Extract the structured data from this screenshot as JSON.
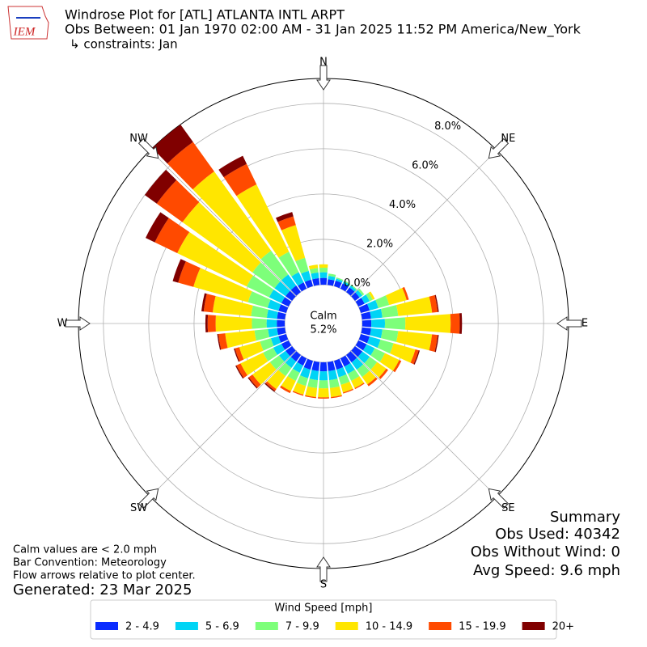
{
  "chart_data": {
    "type": "windrose",
    "title": "Windrose Plot for [ATL] ATLANTA INTL ARPT",
    "subtitle": "Obs Between: 01 Jan 1970 02:00 AM - 31 Jan 2025 11:52 PM America/New_York",
    "constraints": "↳ constraints: Jan",
    "logo_text": "IEM",
    "x": [
      0,
      10,
      20,
      30,
      40,
      50,
      60,
      70,
      80,
      90,
      100,
      110,
      120,
      130,
      140,
      150,
      160,
      170,
      180,
      190,
      200,
      210,
      220,
      230,
      240,
      250,
      260,
      270,
      280,
      290,
      300,
      310,
      320,
      330,
      340,
      350
    ],
    "xticks": [
      {
        "value": 0,
        "label": "N"
      },
      {
        "value": 45,
        "label": "NE"
      },
      {
        "value": 90,
        "label": "E"
      },
      {
        "value": 135,
        "label": "SE"
      },
      {
        "value": 180,
        "label": "S"
      },
      {
        "value": 225,
        "label": "SW"
      },
      {
        "value": 270,
        "label": "W"
      },
      {
        "value": 315,
        "label": "NW"
      }
    ],
    "ylim": [
      0,
      9.1
    ],
    "yticks": [
      {
        "value": 0,
        "label": "0.0%"
      },
      {
        "value": 2,
        "label": "2.0%"
      },
      {
        "value": 4,
        "label": "4.0%"
      },
      {
        "value": 6,
        "label": "6.0%"
      },
      {
        "value": 8,
        "label": "8.0%"
      }
    ],
    "grid": true,
    "calm": {
      "label": "Calm",
      "value": "5.2%"
    },
    "legend_title": "Wind Speed [mph]",
    "series": [
      {
        "name": "2 - 4.9",
        "color": "#0a2cff",
        "values": [
          0.3,
          0.25,
          0.25,
          0.25,
          0.25,
          0.25,
          0.3,
          0.4,
          0.4,
          0.4,
          0.4,
          0.4,
          0.4,
          0.4,
          0.4,
          0.4,
          0.4,
          0.4,
          0.4,
          0.4,
          0.4,
          0.35,
          0.35,
          0.35,
          0.35,
          0.35,
          0.35,
          0.35,
          0.35,
          0.35,
          0.35,
          0.35,
          0.35,
          0.3,
          0.3,
          0.3
        ]
      },
      {
        "name": "5 - 6.9",
        "color": "#00d4f5",
        "values": [
          0.25,
          0.15,
          0.1,
          0.1,
          0.1,
          0.15,
          0.25,
          0.4,
          0.5,
          0.6,
          0.5,
          0.5,
          0.4,
          0.4,
          0.4,
          0.35,
          0.35,
          0.4,
          0.4,
          0.4,
          0.4,
          0.35,
          0.35,
          0.35,
          0.4,
          0.35,
          0.4,
          0.45,
          0.45,
          0.5,
          0.6,
          0.6,
          0.6,
          0.5,
          0.4,
          0.25
        ]
      },
      {
        "name": "7 - 9.9",
        "color": "#7dff7a",
        "values": [
          0.2,
          0.1,
          0.05,
          0.05,
          0.05,
          0.1,
          0.15,
          0.5,
          0.7,
          0.9,
          0.7,
          0.6,
          0.5,
          0.4,
          0.4,
          0.35,
          0.35,
          0.35,
          0.35,
          0.35,
          0.35,
          0.4,
          0.45,
          0.5,
          0.5,
          0.5,
          0.6,
          0.65,
          0.7,
          0.9,
          1.1,
          1.2,
          1.3,
          1.0,
          0.6,
          0.2
        ]
      },
      {
        "name": "10 - 14.9",
        "color": "#ffe600",
        "values": [
          0.15,
          0,
          0,
          0,
          0,
          0,
          0.1,
          0.8,
          1.5,
          2.0,
          1.5,
          1.0,
          0.7,
          0.5,
          0.4,
          0.35,
          0.35,
          0.4,
          0.4,
          0.4,
          0.4,
          0.5,
          0.7,
          0.95,
          1.1,
          0.95,
          1.3,
          1.6,
          1.7,
          2.5,
          3.4,
          3.8,
          4.3,
          3.3,
          1.5,
          0.15
        ]
      },
      {
        "name": "15 - 19.9",
        "color": "#ff4a00",
        "values": [
          0,
          0,
          0,
          0,
          0,
          0,
          0,
          0.1,
          0.25,
          0.4,
          0.25,
          0.15,
          0.1,
          0.1,
          0.1,
          0.05,
          0.05,
          0.05,
          0.05,
          0.05,
          0.05,
          0.1,
          0.1,
          0.2,
          0.2,
          0.2,
          0.3,
          0.35,
          0.4,
          0.7,
          1.1,
          1.4,
          1.6,
          1.0,
          0.4,
          0
        ]
      },
      {
        "name": "20+",
        "color": "#800000",
        "values": [
          0,
          0,
          0,
          0,
          0,
          0,
          0,
          0,
          0.05,
          0.1,
          0.05,
          0.05,
          0,
          0,
          0,
          0,
          0,
          0,
          0,
          0,
          0,
          0,
          0.05,
          0.05,
          0.05,
          0.05,
          0.05,
          0.1,
          0.1,
          0.25,
          0.45,
          0.65,
          0.95,
          0.4,
          0.2,
          0
        ]
      }
    ],
    "notes": [
      "Calm values are < 2.0 mph",
      "Bar Convention: Meteorology",
      "Flow arrows relative to plot center."
    ],
    "generated": "Generated: 23 Mar 2025",
    "summary": [
      "Summary",
      "Obs Used: 40342",
      "Obs Without Wind: 0",
      "Avg Speed: 9.6 mph"
    ]
  }
}
